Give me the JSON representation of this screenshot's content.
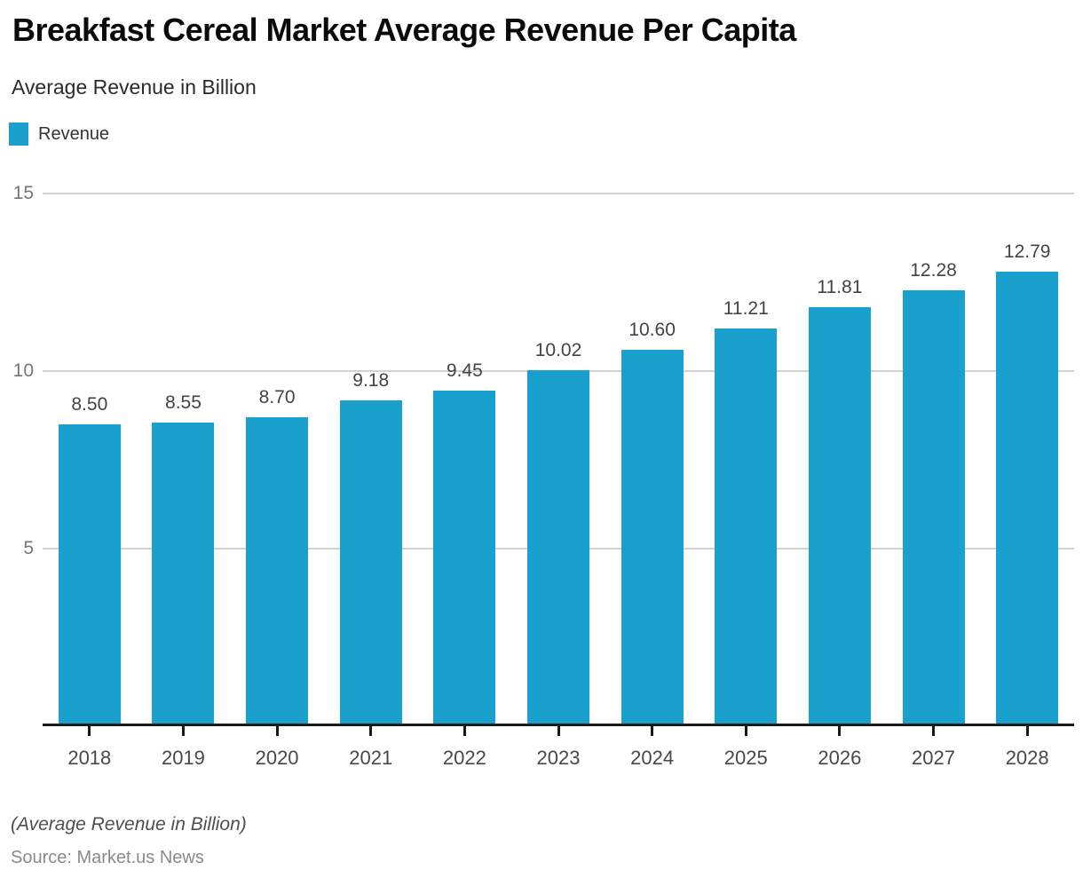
{
  "header": {
    "title": "Breakfast Cereal Market Average Revenue Per Capita",
    "subtitle": "Average Revenue in Billion"
  },
  "legend": {
    "items": [
      {
        "label": "Revenue",
        "color": "#19a0cd"
      }
    ]
  },
  "chart_data": {
    "type": "bar",
    "title": "Breakfast Cereal Market Average Revenue Per Capita",
    "subtitle": "Average Revenue in Billion",
    "categories": [
      "2018",
      "2019",
      "2020",
      "2021",
      "2022",
      "2023",
      "2024",
      "2025",
      "2026",
      "2027",
      "2028"
    ],
    "series": [
      {
        "name": "Revenue",
        "values": [
          8.5,
          8.55,
          8.7,
          9.18,
          9.45,
          10.02,
          10.6,
          11.21,
          11.81,
          12.28,
          12.79
        ],
        "data_labels": [
          "8.50",
          "8.55",
          "8.70",
          "9.18",
          "9.45",
          "10.02",
          "10.60",
          "11.21",
          "11.81",
          "12.28",
          "12.79"
        ],
        "color": "#19a0cd"
      }
    ],
    "xlabel": "",
    "ylabel": "",
    "ylim": [
      0,
      15
    ],
    "yticks": [
      5,
      10,
      15
    ],
    "grid": true,
    "legend_position": "top-left",
    "colors": {
      "bar": "#19a0cd",
      "gridline": "#d2d2d2",
      "axis": "#1a1a1a",
      "ytick_text": "#757575",
      "xtick_text": "#484848",
      "value_label_text": "#434343"
    }
  },
  "footer": {
    "note": "(Average Revenue in Billion)",
    "source": "Source: Market.us News"
  }
}
